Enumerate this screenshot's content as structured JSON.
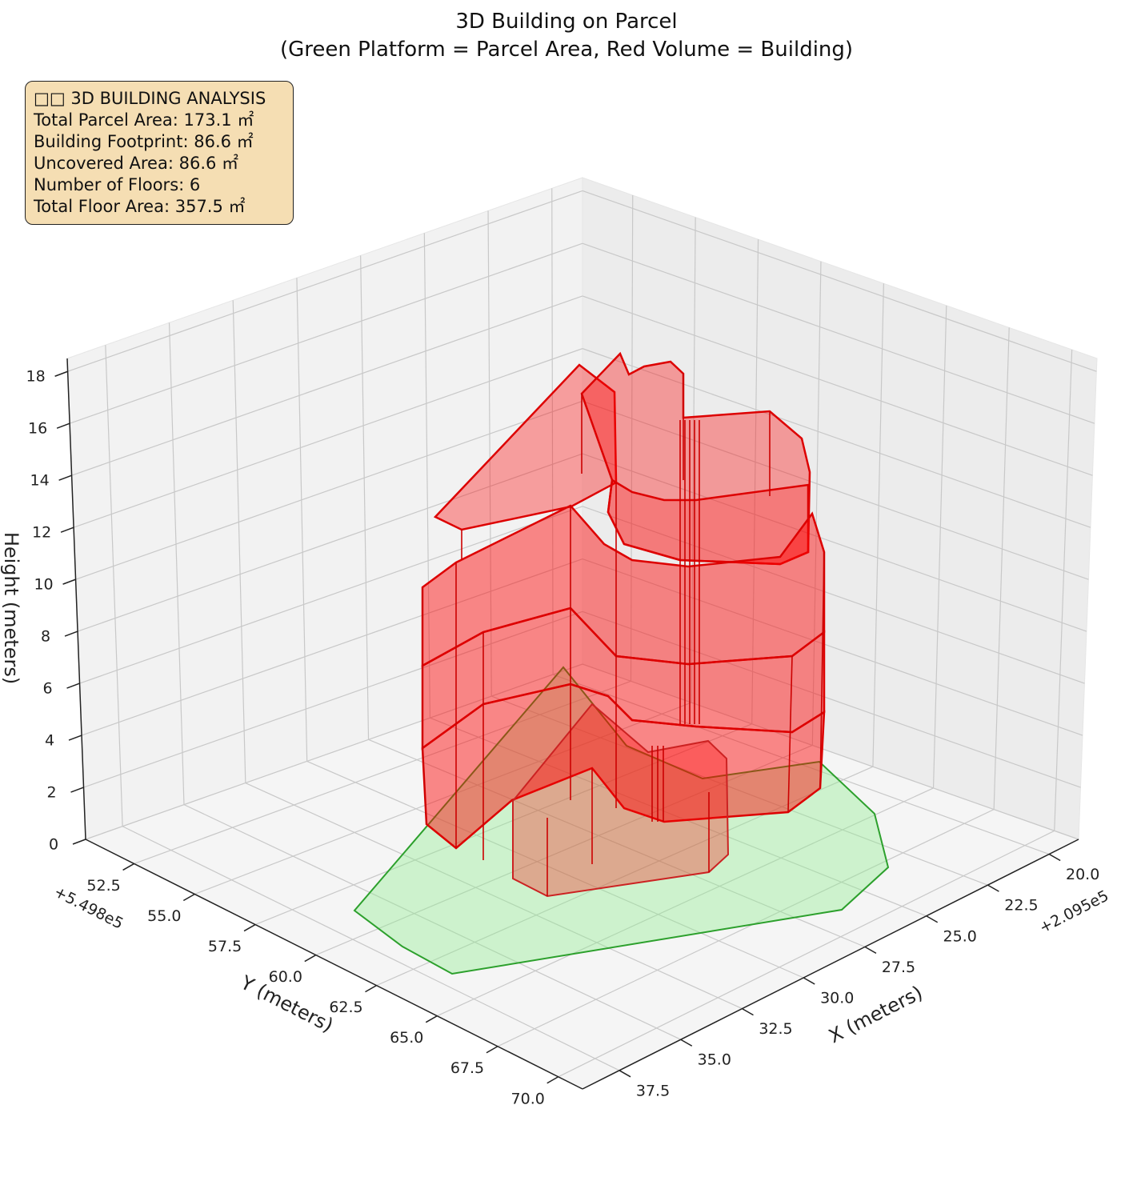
{
  "chart_data": {
    "type": "3d-polygon",
    "title": "3D Building on Parcel",
    "subtitle": "(Green Platform = Parcel Area, Red Volume = Building)",
    "xlabel": "X (meters)",
    "ylabel": "Y (meters)",
    "zlabel": "Height (meters)",
    "x_offset_label": "+2.095e5",
    "y_offset_label": "+5.498e5",
    "x_ticks": [
      "20.0",
      "22.5",
      "25.0",
      "27.5",
      "30.0",
      "32.5",
      "35.0",
      "37.5"
    ],
    "y_ticks": [
      "52.5",
      "55.0",
      "57.5",
      "60.0",
      "62.5",
      "65.0",
      "67.5",
      "70.0"
    ],
    "z_ticks": [
      "0",
      "2",
      "4",
      "6",
      "8",
      "10",
      "12",
      "14",
      "16",
      "18"
    ],
    "xlim": [
      18.8,
      39.0
    ],
    "ylim": [
      50.5,
      71.0
    ],
    "zlim": [
      0,
      18.5
    ],
    "series": [
      {
        "name": "Parcel",
        "color": "#2ca02c",
        "fill": "#90ee90"
      },
      {
        "name": "Building",
        "color": "#ff0000",
        "fill": "#ff0000"
      }
    ],
    "parcel_area_m2": 173.1,
    "building_footprint_m2": 86.6,
    "uncovered_area_m2": 86.6,
    "floors": 6,
    "total_floor_area_m2": 357.5
  },
  "info_box": {
    "heading": "□□ 3D BUILDING ANALYSIS",
    "line1": "Total Parcel Area: 173.1 ㎡",
    "line2": "Building Footprint: 86.6 ㎡",
    "line3": "Uncovered Area: 86.6 ㎡",
    "line4": "Number of Floors: 6",
    "line5": "Total Floor Area: 357.5 ㎡"
  }
}
